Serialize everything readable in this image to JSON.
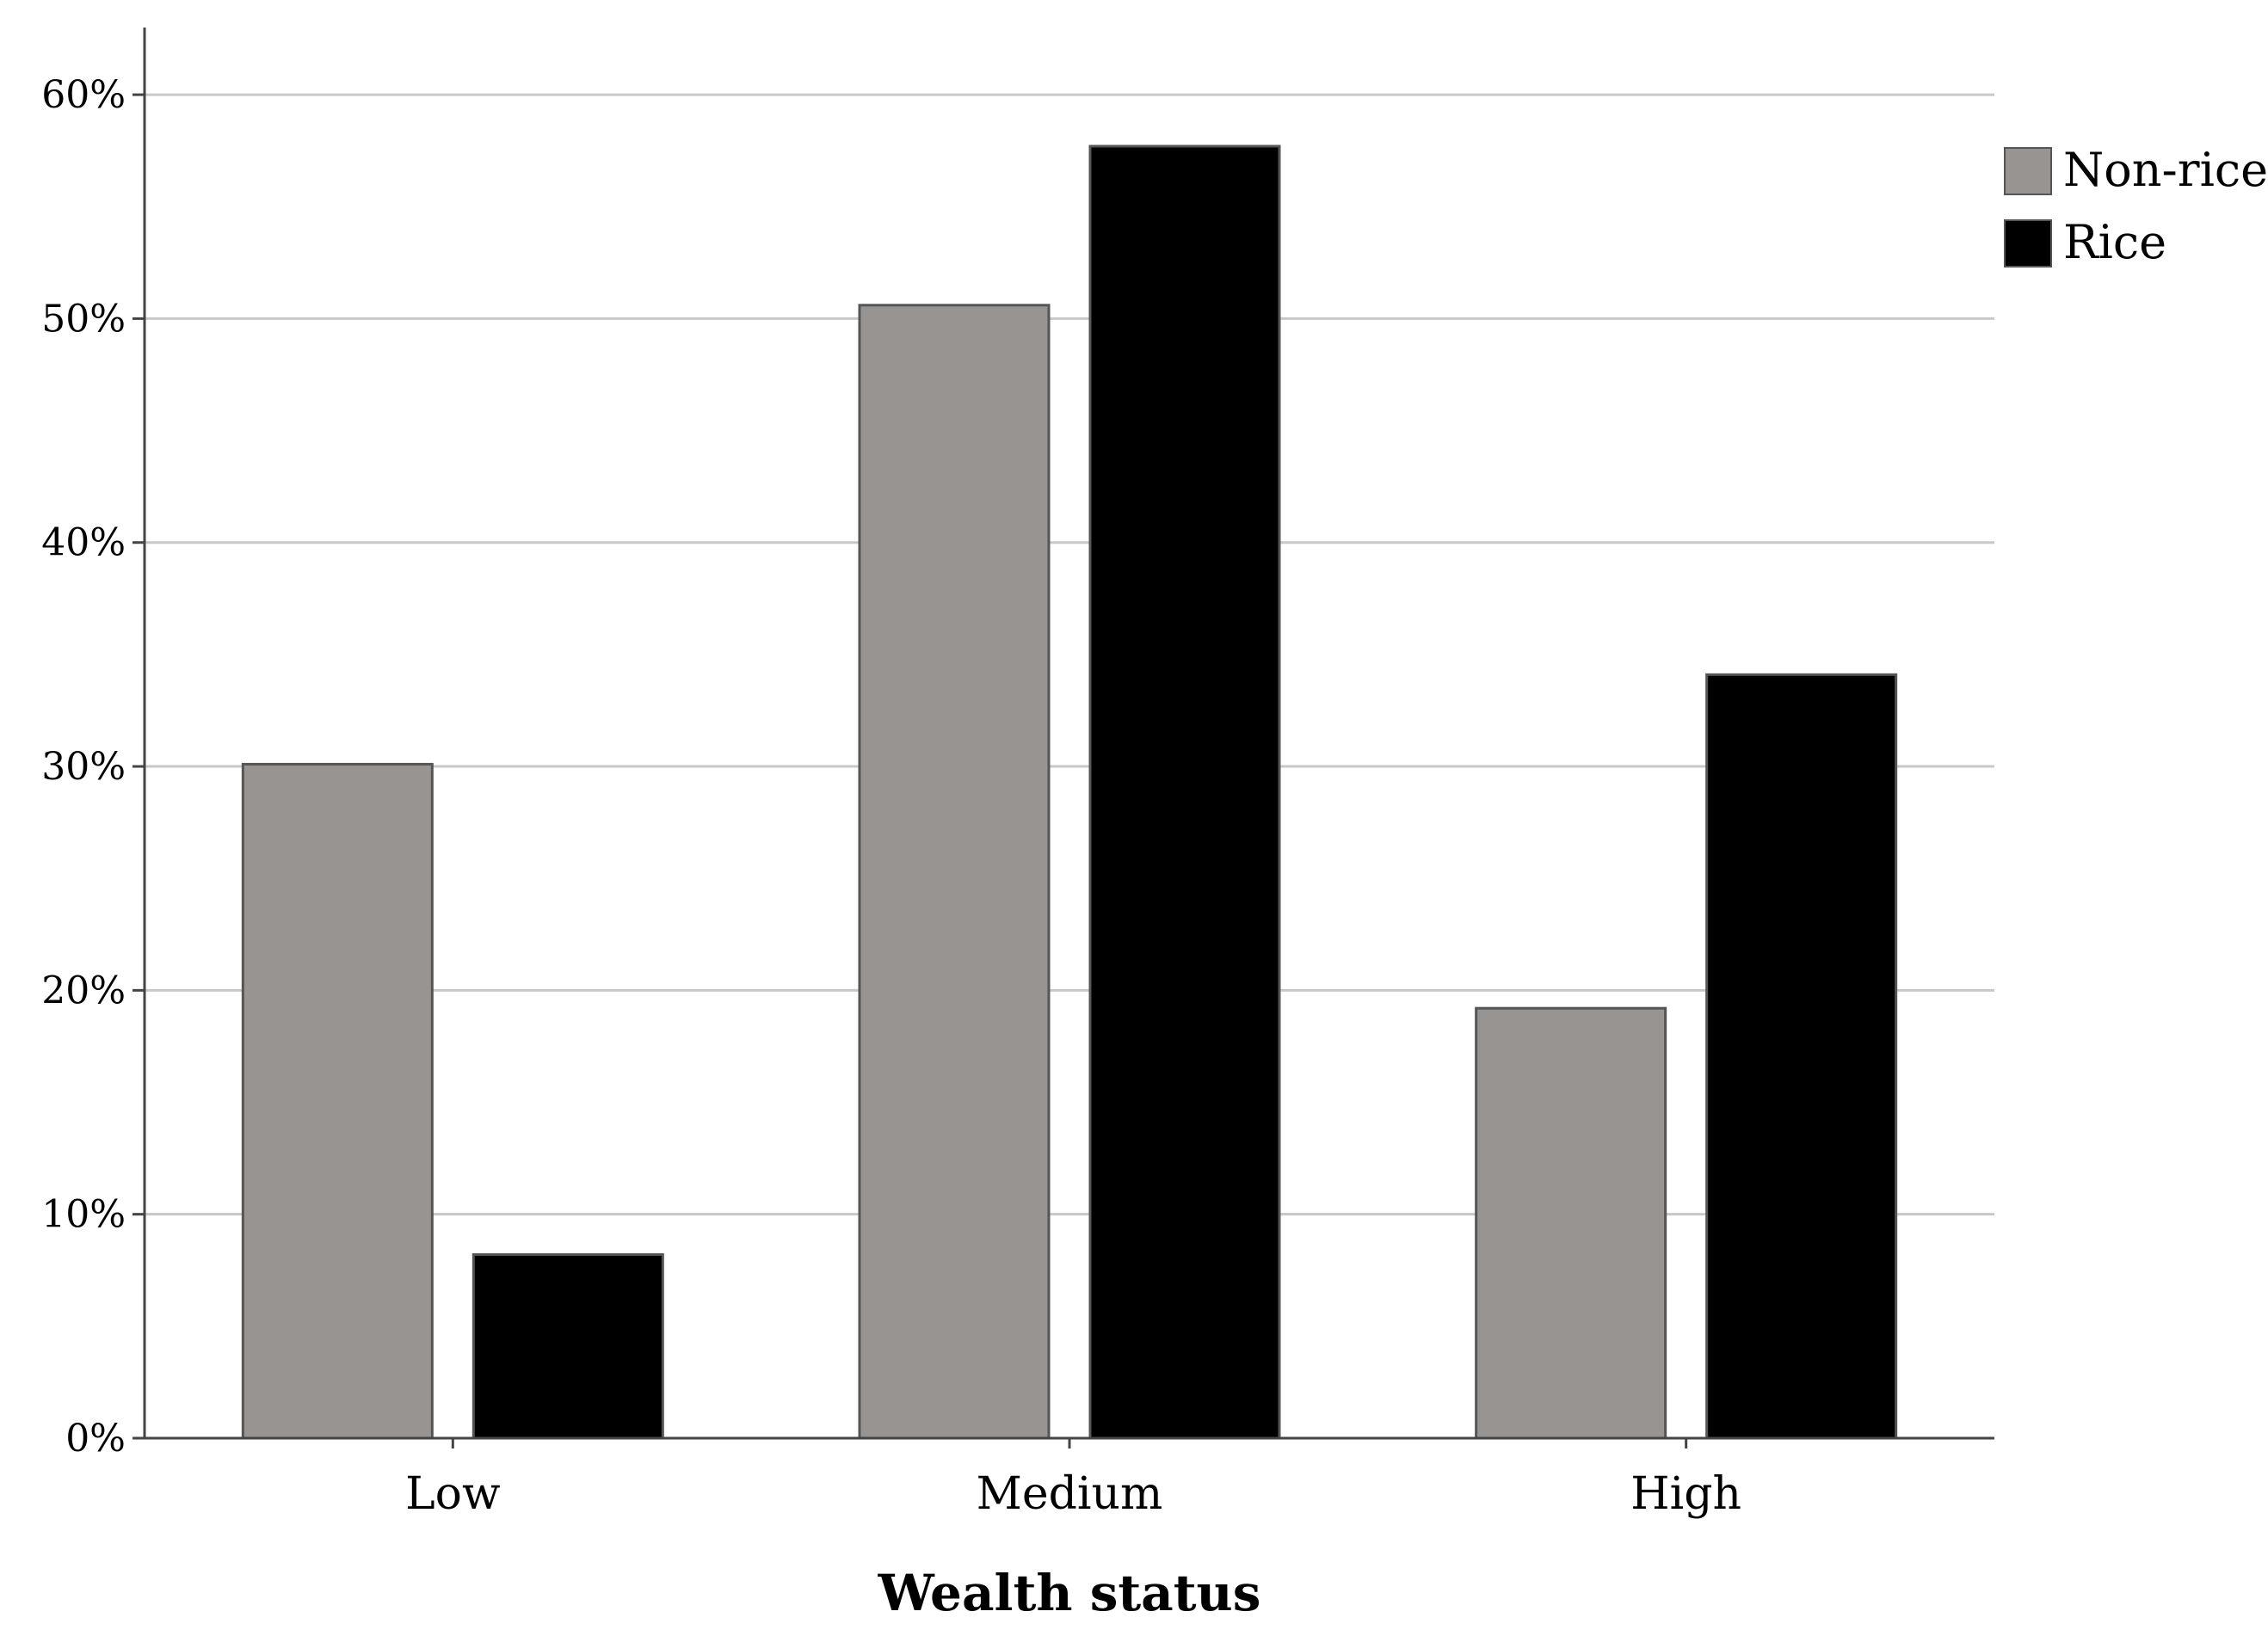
{
  "chart_data": {
    "type": "bar",
    "categories": [
      "Low",
      "Medium",
      "High"
    ],
    "series": [
      {
        "name": "Non-rice",
        "values": [
          30.1,
          50.6,
          19.2
        ],
        "color": "#979492"
      },
      {
        "name": "Rice",
        "values": [
          8.2,
          57.7,
          34.1
        ],
        "color": "#000000"
      }
    ],
    "yticks": [
      "0%",
      "10%",
      "20%",
      "30%",
      "40%",
      "50%",
      "60%"
    ],
    "ytick_values": [
      0,
      10,
      20,
      30,
      40,
      50,
      60
    ],
    "ylim": [
      0,
      63
    ],
    "xlabel": "Wealth status",
    "ylabel": "",
    "title": "",
    "grid": true,
    "legend_position": "right",
    "gridline_color": "#c8c8c8",
    "axis_color": "#444444"
  }
}
